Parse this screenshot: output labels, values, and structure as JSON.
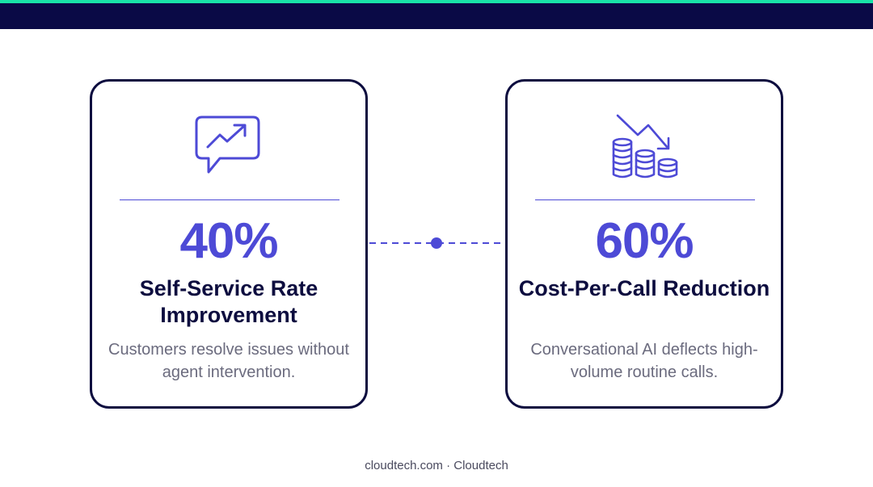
{
  "theme": {
    "accent": "#19e3a8",
    "navy": "#0a0a46",
    "primary": "#4d4ad6",
    "border": "#0d0d3f"
  },
  "cards": [
    {
      "icon": "trend-up-chat-icon",
      "value": "40%",
      "title": "Self-Service Rate Improvement",
      "description": "Customers resolve issues without agent intervention."
    },
    {
      "icon": "coins-trend-down-icon",
      "value": "60%",
      "title": "Cost-Per-Call Reduction",
      "description": "Conversational AI deflects high-volume routine calls."
    }
  ],
  "footer": {
    "text": "cloudtech.com · Cloudtech"
  }
}
